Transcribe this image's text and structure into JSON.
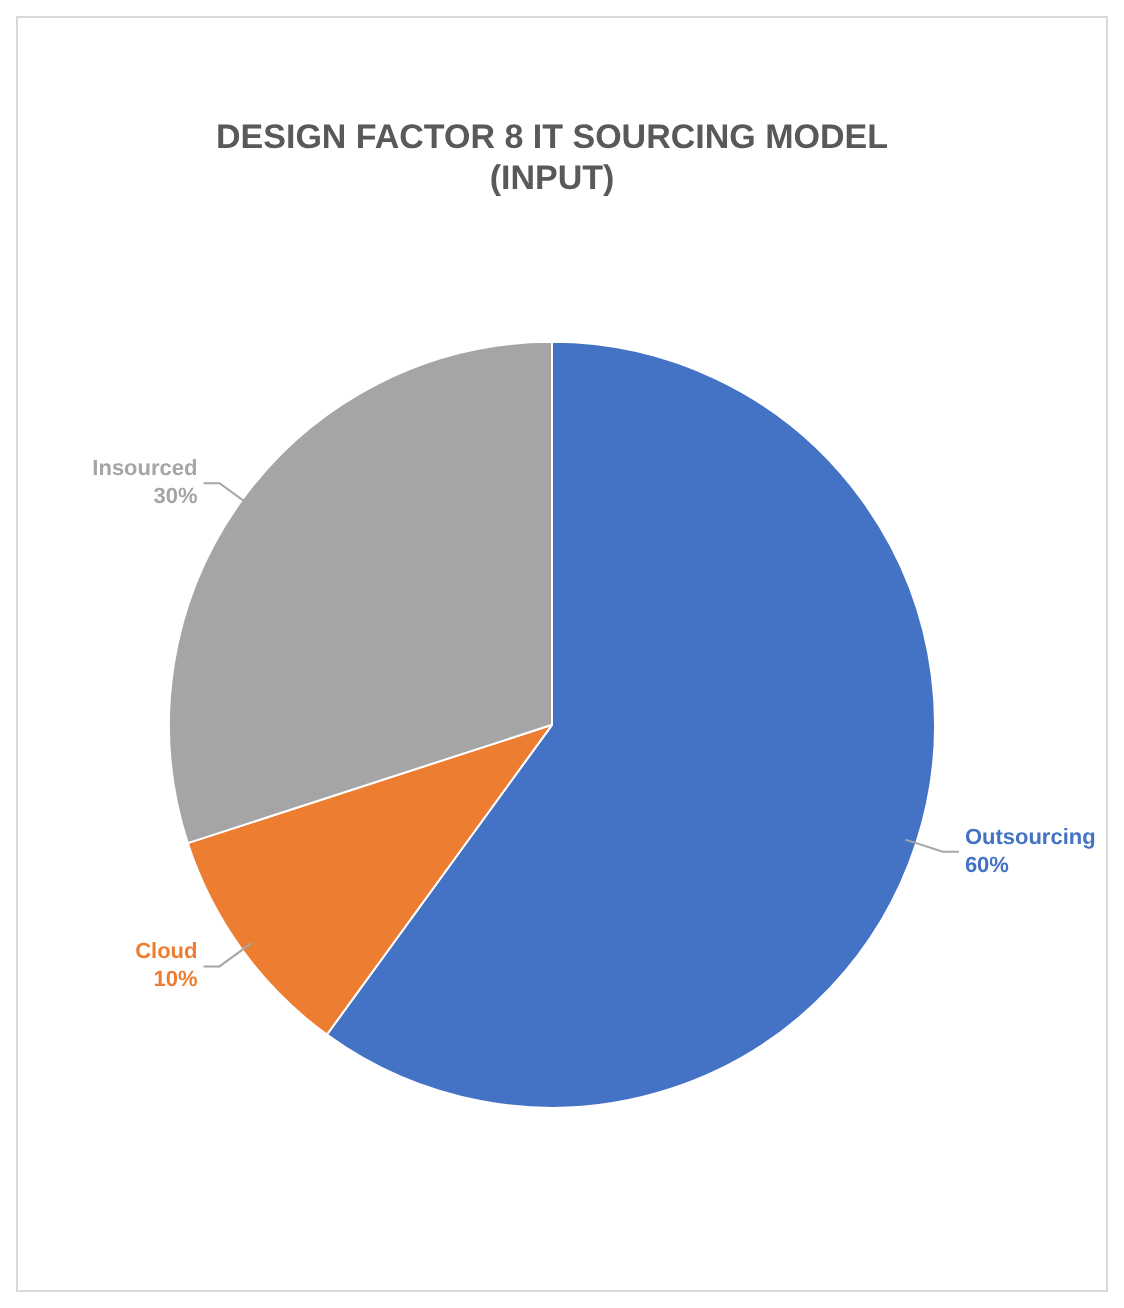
{
  "chart_data": {
    "type": "pie",
    "title": "DESIGN FACTOR 8 IT SOURCING MODEL\n(INPUT)",
    "categories": [
      "Outsourcing",
      "Cloud",
      "Insourced"
    ],
    "values": [
      60,
      10,
      30
    ],
    "colors": [
      "#4472c4",
      "#ed7d31",
      "#a5a5a5"
    ],
    "value_labels": [
      "60%",
      "10%",
      "30%"
    ]
  }
}
